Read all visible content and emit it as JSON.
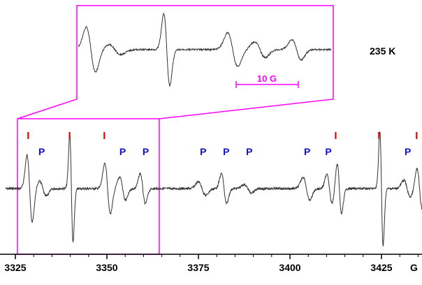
{
  "chart_data": {
    "type": "line",
    "title": "",
    "annotation_temperature": "235 K",
    "xlabel": "G",
    "ylabel": "",
    "xlim": [
      3322.3,
      3437
    ],
    "x_ticks": [
      3325,
      3350,
      3375,
      3400,
      3425
    ],
    "x_tick_labels": [
      "3325",
      "3350",
      "3375",
      "3400",
      "3425"
    ],
    "grid": false,
    "legend": "none",
    "colors": {
      "trace": "#333333",
      "box": "#ff00ff",
      "I_marker": "#e00000",
      "P_label": "#1010c8",
      "axis": "#000000"
    },
    "I_marker_label": "I",
    "P_label": "P",
    "I_marker_positions_G": [
      3328.5,
      3339.8,
      3349.3,
      3412.5,
      3424.3,
      3434.6
    ],
    "P_label_positions_G": [
      3332.2,
      3354.3,
      3360.6,
      3376.3,
      3382.6,
      3388.9,
      3404.7,
      3410.5,
      3432.2
    ],
    "inset": {
      "x_range_G": [
        3327,
        3365
      ],
      "scale_bar_label": "10 G",
      "scale_bar_G": 10
    },
    "signals": [
      {
        "center_G": 3328.9,
        "amplitude": 1.0,
        "width_G": 0.7,
        "kind": "I"
      },
      {
        "center_G": 3340.3,
        "amplitude": 1.6,
        "width_G": 0.45,
        "kind": "I"
      },
      {
        "center_G": 3350.2,
        "amplitude": 0.75,
        "width_G": 0.75,
        "kind": "I"
      },
      {
        "center_G": 3413.5,
        "amplitude": 0.75,
        "width_G": 0.6,
        "kind": "I"
      },
      {
        "center_G": 3425.0,
        "amplitude": 1.7,
        "width_G": 0.45,
        "kind": "I"
      },
      {
        "center_G": 3435.4,
        "amplitude": 0.6,
        "width_G": 0.7,
        "kind": "I"
      },
      {
        "center_G": 3332.5,
        "amplitude": 0.22,
        "width_G": 0.9,
        "kind": "P"
      },
      {
        "center_G": 3354.3,
        "amplitude": 0.35,
        "width_G": 0.8,
        "kind": "P"
      },
      {
        "center_G": 3359.8,
        "amplitude": 0.45,
        "width_G": 0.7,
        "kind": "P"
      },
      {
        "center_G": 3376.0,
        "amplitude": 0.2,
        "width_G": 1.0,
        "kind": "P"
      },
      {
        "center_G": 3382.0,
        "amplitude": 0.45,
        "width_G": 0.7,
        "kind": "P"
      },
      {
        "center_G": 3388.5,
        "amplitude": 0.12,
        "width_G": 1.0,
        "kind": "P"
      },
      {
        "center_G": 3404.5,
        "amplitude": 0.35,
        "width_G": 0.9,
        "kind": "P"
      },
      {
        "center_G": 3410.8,
        "amplitude": 0.45,
        "width_G": 0.7,
        "kind": "P"
      },
      {
        "center_G": 3432.0,
        "amplitude": 0.25,
        "width_G": 0.9,
        "kind": "P"
      }
    ]
  }
}
